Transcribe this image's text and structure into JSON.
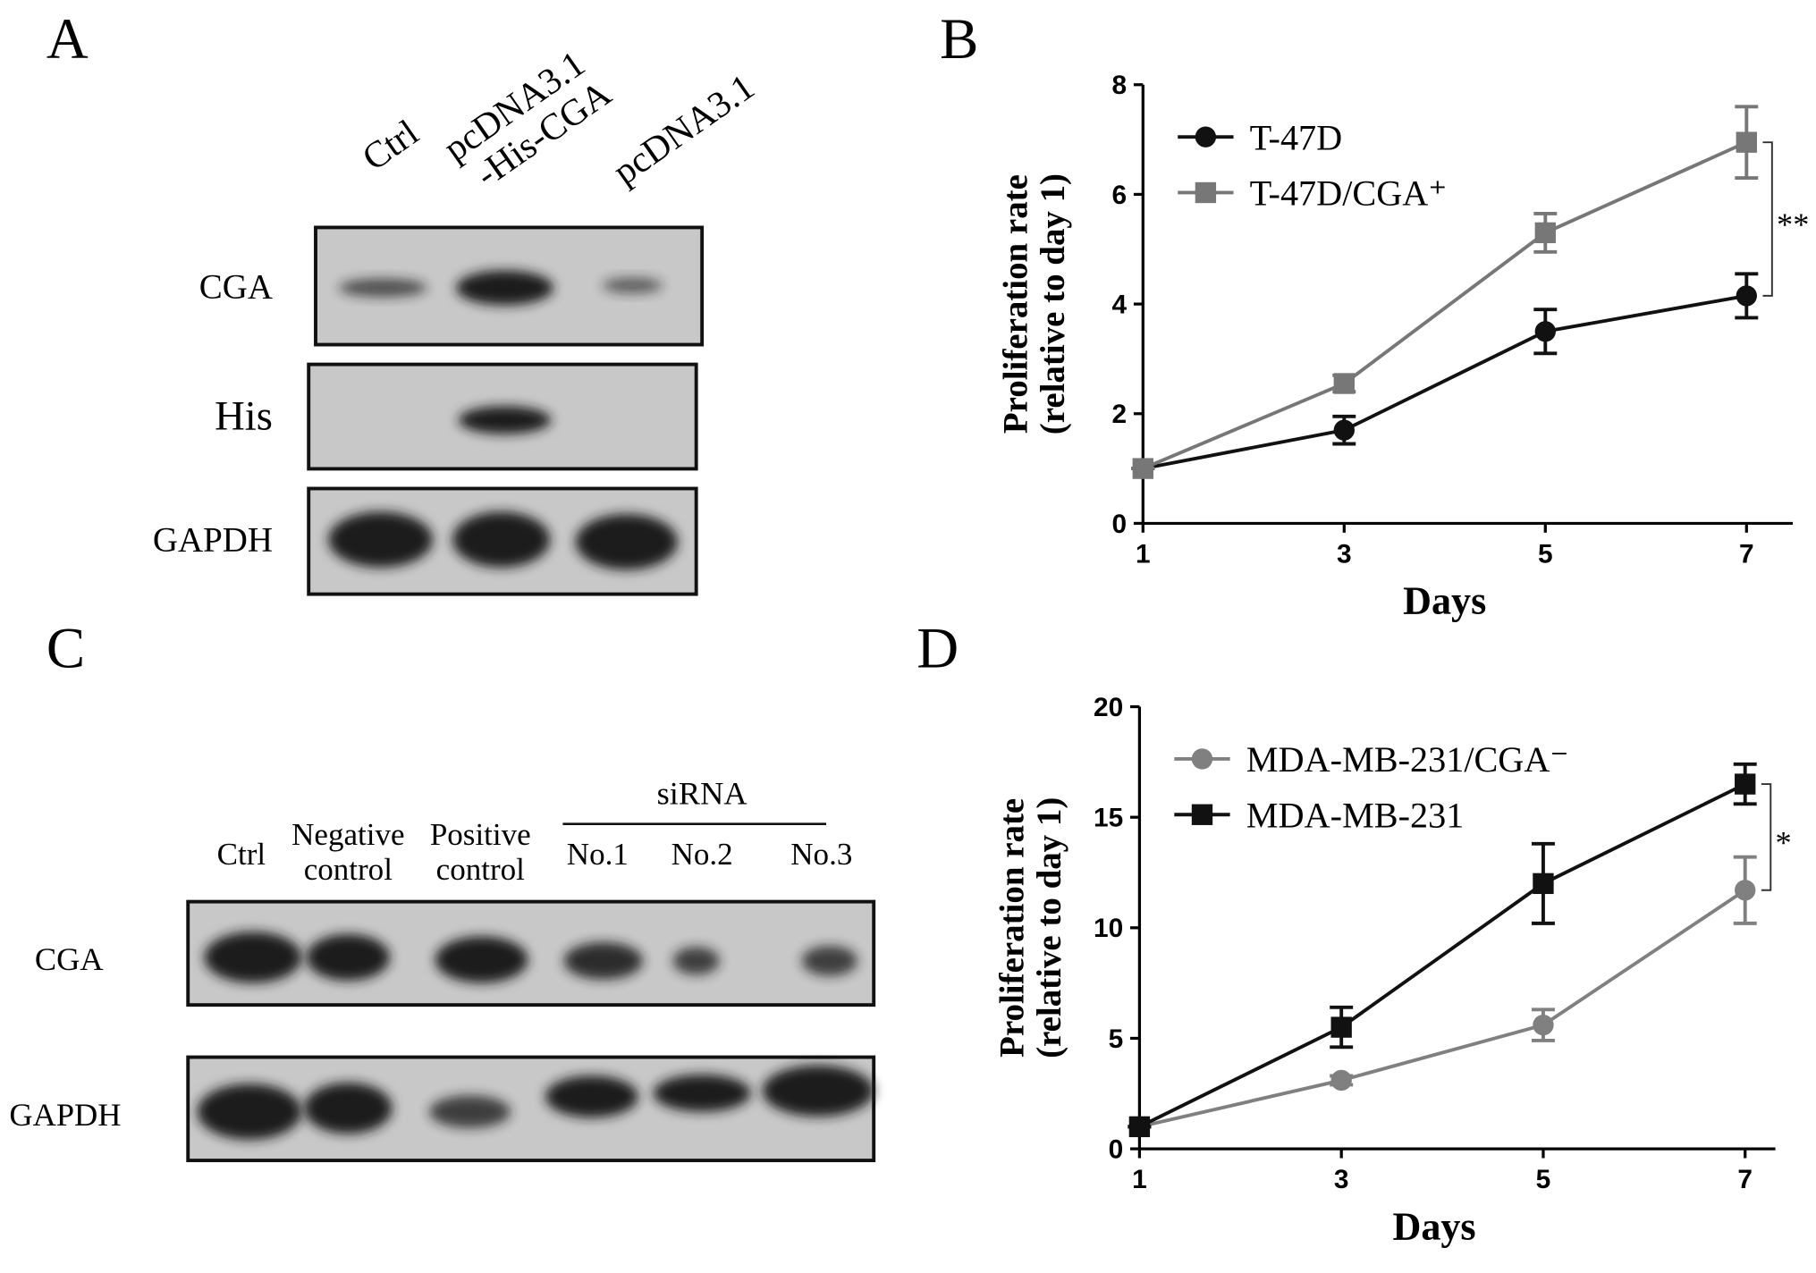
{
  "panels": {
    "a": {
      "letter": "A",
      "lanes": [
        [
          "Ctrl"
        ],
        [
          "pcDNA3.1",
          "-His-CGA"
        ],
        [
          "pcDNA3.1"
        ]
      ],
      "rows": [
        "CGA",
        "His",
        "GAPDH"
      ]
    },
    "c": {
      "letter": "C",
      "group": "siRNA",
      "lanes": [
        [
          "Ctrl"
        ],
        [
          "Negative",
          "control"
        ],
        [
          "Positive",
          "control"
        ],
        [
          "No.1"
        ],
        [
          "No.2"
        ],
        [
          "No.3"
        ]
      ],
      "rows": [
        "CGA",
        "GAPDH"
      ]
    }
  },
  "chart_data": [
    {
      "type": "line",
      "panel": "B",
      "xlabel": "Days",
      "ylabel": [
        "Proliferation rate",
        "(relative to day 1)"
      ],
      "x": [
        1,
        3,
        5,
        7
      ],
      "xlim": [
        1,
        7.46
      ],
      "xticks": [
        1,
        3,
        5,
        7
      ],
      "ylim": [
        0,
        8
      ],
      "yticks": [
        0,
        2,
        4,
        6,
        8
      ],
      "legend": "upper left",
      "significance": "**",
      "series": [
        {
          "name": "T-47D",
          "color": "#111111",
          "marker": "circle",
          "values": [
            1,
            1.7,
            3.5,
            4.15
          ],
          "errors": [
            0,
            0.25,
            0.4,
            0.4
          ]
        },
        {
          "name": "T-47D/CGA⁺",
          "color": "#777777",
          "marker": "square",
          "values": [
            1,
            2.55,
            5.3,
            6.95
          ],
          "errors": [
            0,
            0.15,
            0.35,
            0.65
          ]
        }
      ]
    },
    {
      "type": "line",
      "panel": "D",
      "xlabel": "Days",
      "ylabel": [
        "Proliferation rate",
        "(relative to day 1)"
      ],
      "x": [
        1,
        3,
        5,
        7
      ],
      "xlim": [
        1,
        7.3
      ],
      "xticks": [
        1,
        3,
        5,
        7
      ],
      "ylim": [
        0,
        20
      ],
      "yticks": [
        0,
        5,
        10,
        15,
        20
      ],
      "legend": "upper left",
      "significance": "*",
      "series": [
        {
          "name": "MDA-MB-231/CGA⁻",
          "color": "#808080",
          "marker": "circle",
          "values": [
            1,
            3.1,
            5.6,
            11.7
          ],
          "errors": [
            0,
            0.2,
            0.7,
            1.5
          ]
        },
        {
          "name": "MDA-MB-231",
          "color": "#111111",
          "marker": "square",
          "values": [
            1,
            5.5,
            12,
            16.5
          ],
          "errors": [
            0,
            0.9,
            1.8,
            0.9
          ]
        }
      ]
    }
  ]
}
